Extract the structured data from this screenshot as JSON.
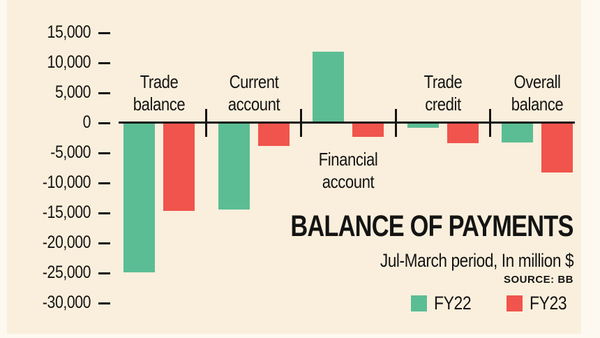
{
  "title": "BALANCE OF PAYMENTS",
  "subtitle": "Jul-March period, In million $",
  "source": "SOURCE: BB",
  "colors": {
    "fy22": "#5bbd94",
    "fy23": "#f0544c",
    "background": "#faefdc",
    "edge": "#fdf8f0",
    "text": "#141414"
  },
  "legend": [
    {
      "label": "FY22",
      "color": "#5bbd94"
    },
    {
      "label": "FY23",
      "color": "#f0544c"
    }
  ],
  "chart_data": {
    "type": "bar",
    "categories": [
      "Trade balance",
      "Current account",
      "Financial account",
      "Trade credit",
      "Overall balance"
    ],
    "series": [
      {
        "name": "FY22",
        "color": "#5bbd94",
        "values": [
          -24900,
          -14400,
          11900,
          -800,
          -3200
        ]
      },
      {
        "name": "FY23",
        "color": "#f0544c",
        "values": [
          -14700,
          -3800,
          -2300,
          -3400,
          -8200
        ]
      }
    ],
    "title": "BALANCE OF PAYMENTS",
    "subtitle": "Jul-March period, In million $",
    "xlabel": "",
    "ylabel": "In million $",
    "ylim": [
      -30000,
      15000
    ],
    "yticks": [
      15000,
      10000,
      5000,
      0,
      -5000,
      -10000,
      -15000,
      -20000,
      -25000,
      -30000
    ],
    "ytick_labels": [
      "15,000",
      "10,000",
      "5,000",
      "0",
      "-5,000",
      "-10,000",
      "-15,000",
      "-20,000",
      "-25,000",
      "-30,000"
    ],
    "grid": false,
    "legend_position": "bottom-right",
    "below_axis_label": "Financial account"
  }
}
